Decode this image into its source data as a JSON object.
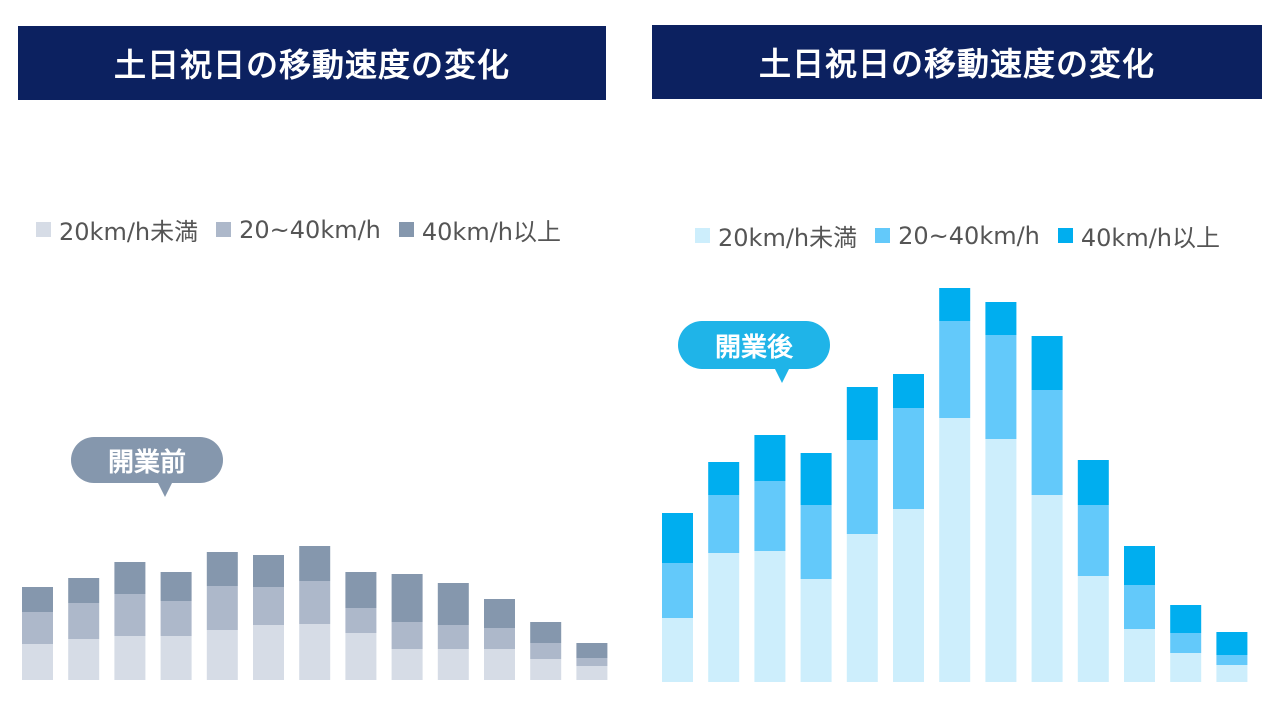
{
  "chart_data": [
    {
      "type": "bar",
      "stacked": true,
      "title": "土日祝日の移動速度の変化",
      "annotation": "開業前",
      "categories": [
        "",
        "",
        "",
        "",
        "",
        "",
        "",
        "",
        "",
        "",
        "",
        "",
        ""
      ],
      "series": [
        {
          "name": "20km/h未満",
          "color": "#d6dce6",
          "values": [
            36,
            41,
            44,
            44,
            50,
            55,
            56,
            47,
            31,
            31,
            31,
            21,
            14
          ]
        },
        {
          "name": "20~40km/h",
          "color": "#adb8ca",
          "values": [
            32,
            36,
            42,
            35,
            44,
            38,
            43,
            25,
            27,
            24,
            21,
            16,
            8
          ]
        },
        {
          "name": "40km/h以上",
          "color": "#8597ad",
          "values": [
            25,
            25,
            32,
            29,
            34,
            32,
            35,
            36,
            48,
            42,
            29,
            21,
            15
          ]
        }
      ],
      "ylim": [
        0,
        400
      ],
      "legend": "top"
    },
    {
      "type": "bar",
      "stacked": true,
      "title": "土日祝日の移動速度の変化",
      "annotation": "開業後",
      "categories": [
        "",
        "",
        "",
        "",
        "",
        "",
        "",
        "",
        "",
        "",
        "",
        "",
        ""
      ],
      "series": [
        {
          "name": "20km/h未満",
          "color": "#cdeefc",
          "values": [
            64,
            129,
            131,
            103,
            148,
            173,
            264,
            243,
            187,
            106,
            53,
            29,
            17
          ]
        },
        {
          "name": "20~40km/h",
          "color": "#63c9fa",
          "values": [
            55,
            58,
            70,
            74,
            94,
            101,
            97,
            104,
            105,
            71,
            44,
            20,
            10
          ]
        },
        {
          "name": "40km/h以上",
          "color": "#00aeef",
          "values": [
            50,
            33,
            46,
            52,
            53,
            34,
            33,
            33,
            54,
            45,
            39,
            28,
            23
          ]
        }
      ],
      "ylim": [
        0,
        400
      ],
      "legend": "top"
    }
  ]
}
